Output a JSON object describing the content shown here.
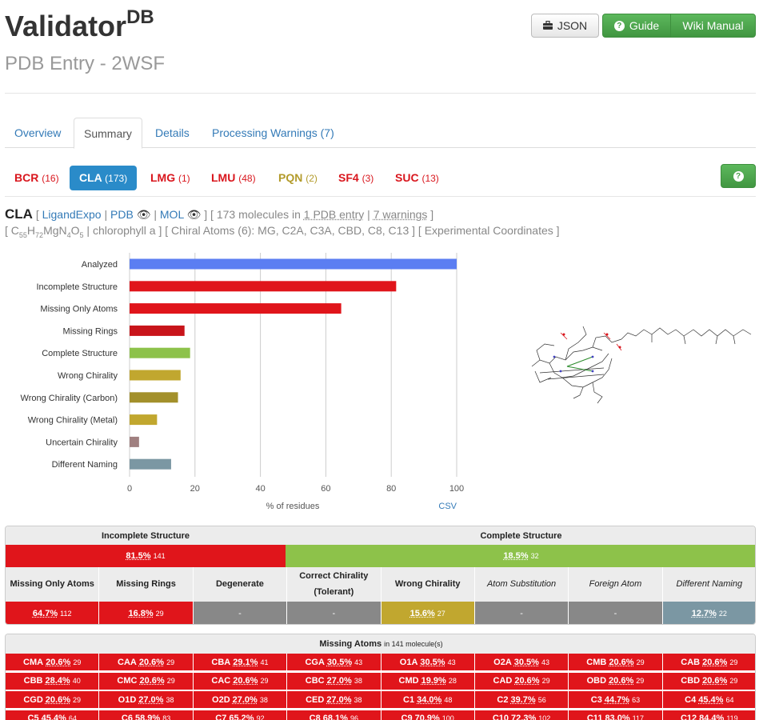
{
  "header": {
    "title": "Validator",
    "title_sup": "DB",
    "subtitle": "PDB Entry - 2WSF",
    "json_button": "JSON",
    "guide_button": "Guide",
    "wiki_button": "Wiki Manual"
  },
  "tabs": [
    {
      "label": "Overview"
    },
    {
      "label": "Summary"
    },
    {
      "label": "Details"
    },
    {
      "label": "Processing Warnings (7)"
    }
  ],
  "ligands": [
    {
      "code": "BCR",
      "count": "(16)"
    },
    {
      "code": "CLA",
      "count": "(173)"
    },
    {
      "code": "LMG",
      "count": "(1)"
    },
    {
      "code": "LMU",
      "count": "(48)"
    },
    {
      "code": "PQN",
      "count": "(2)"
    },
    {
      "code": "SF4",
      "count": "(3)"
    },
    {
      "code": "SUC",
      "count": "(13)"
    }
  ],
  "info": {
    "code": "CLA",
    "link_ligandexpo": "LigandExpo",
    "link_pdb": "PDB",
    "link_mol": "MOL",
    "molecules_text": "173 molecules in",
    "pdb_entry": "1 PDB entry",
    "warnings": "7 warnings",
    "formula": "C55H72MgN4O5",
    "name": "chlorophyll a",
    "chiral": "Chiral Atoms (6): MG, C2A, C3A, CBD, C8, C13",
    "coords": "Experimental Coordinates"
  },
  "chart_data": {
    "type": "bar",
    "orientation": "horizontal",
    "categories": [
      "Analyzed",
      "Incomplete Structure",
      "Missing Only Atoms",
      "Missing Rings",
      "Complete Structure",
      "Wrong Chirality",
      "Wrong Chirality (Carbon)",
      "Wrong Chirality (Metal)",
      "Uncertain Chirality",
      "Different Naming"
    ],
    "values": [
      100,
      81.5,
      64.7,
      16.8,
      18.5,
      15.6,
      14.8,
      8.4,
      2.9,
      12.7
    ],
    "colors": [
      "#5b7ef2",
      "#e0151b",
      "#e0151b",
      "#c8141a",
      "#8dc24a",
      "#c1a72f",
      "#a3902b",
      "#c1a72f",
      "#a08080",
      "#7b97a3"
    ],
    "xlabel": "% of residues",
    "xlim": [
      0,
      100
    ],
    "xticks": [
      "0",
      "20",
      "40",
      "60",
      "80",
      "100"
    ],
    "grid": true,
    "csv_label": "CSV"
  },
  "summary_table": {
    "incomplete_label": "Incomplete Structure",
    "complete_label": "Complete Structure",
    "incomplete_value": "81.5%",
    "incomplete_count": "141",
    "complete_value": "18.5%",
    "complete_count": "32",
    "columns": [
      {
        "label": "Missing Only Atoms",
        "value": "64.7%",
        "count": "112",
        "style": "red",
        "italic": false
      },
      {
        "label": "Missing Rings",
        "value": "16.8%",
        "count": "29",
        "style": "red",
        "italic": false
      },
      {
        "label": "Degenerate",
        "value": "-",
        "count": "",
        "style": "gray",
        "italic": false
      },
      {
        "label": "Correct Chirality (Tolerant)",
        "value": "-",
        "count": "",
        "style": "gray",
        "italic": false
      },
      {
        "label": "Wrong Chirality",
        "value": "15.6%",
        "count": "27",
        "style": "olive",
        "italic": false
      },
      {
        "label": "Atom Substitution",
        "value": "-",
        "count": "",
        "style": "gray",
        "italic": true
      },
      {
        "label": "Foreign Atom",
        "value": "-",
        "count": "",
        "style": "gray",
        "italic": true
      },
      {
        "label": "Different Naming",
        "value": "12.7%",
        "count": "22",
        "style": "slate",
        "italic": true
      }
    ]
  },
  "missing_atoms": {
    "title": "Missing Atoms",
    "subtitle": "in 141 molecule(s)",
    "rows": [
      [
        [
          "CMA",
          "20.6%",
          "29"
        ],
        [
          "CAA",
          "20.6%",
          "29"
        ],
        [
          "CBA",
          "29.1%",
          "41"
        ],
        [
          "CGA",
          "30.5%",
          "43"
        ],
        [
          "O1A",
          "30.5%",
          "43"
        ],
        [
          "O2A",
          "30.5%",
          "43"
        ],
        [
          "CMB",
          "20.6%",
          "29"
        ],
        [
          "CAB",
          "20.6%",
          "29"
        ]
      ],
      [
        [
          "CBB",
          "28.4%",
          "40"
        ],
        [
          "CMC",
          "20.6%",
          "29"
        ],
        [
          "CAC",
          "20.6%",
          "29"
        ],
        [
          "CBC",
          "27.0%",
          "38"
        ],
        [
          "CMD",
          "19.9%",
          "28"
        ],
        [
          "CAD",
          "20.6%",
          "29"
        ],
        [
          "OBD",
          "20.6%",
          "29"
        ],
        [
          "CBD",
          "20.6%",
          "29"
        ]
      ],
      [
        [
          "CGD",
          "20.6%",
          "29"
        ],
        [
          "O1D",
          "27.0%",
          "38"
        ],
        [
          "O2D",
          "27.0%",
          "38"
        ],
        [
          "CED",
          "27.0%",
          "38"
        ],
        [
          "C1",
          "34.0%",
          "48"
        ],
        [
          "C2",
          "39.7%",
          "56"
        ],
        [
          "C3",
          "44.7%",
          "63"
        ],
        [
          "C4",
          "45.4%",
          "64"
        ]
      ],
      [
        [
          "C5",
          "45.4%",
          "64"
        ],
        [
          "C6",
          "58.9%",
          "83"
        ],
        [
          "C7",
          "65.2%",
          "92"
        ],
        [
          "C8",
          "68.1%",
          "96"
        ],
        [
          "C9",
          "70.9%",
          "100"
        ],
        [
          "C10",
          "72.3%",
          "102"
        ],
        [
          "C11",
          "83.0%",
          "117"
        ],
        [
          "C12",
          "84.4%",
          "119"
        ]
      ]
    ]
  }
}
